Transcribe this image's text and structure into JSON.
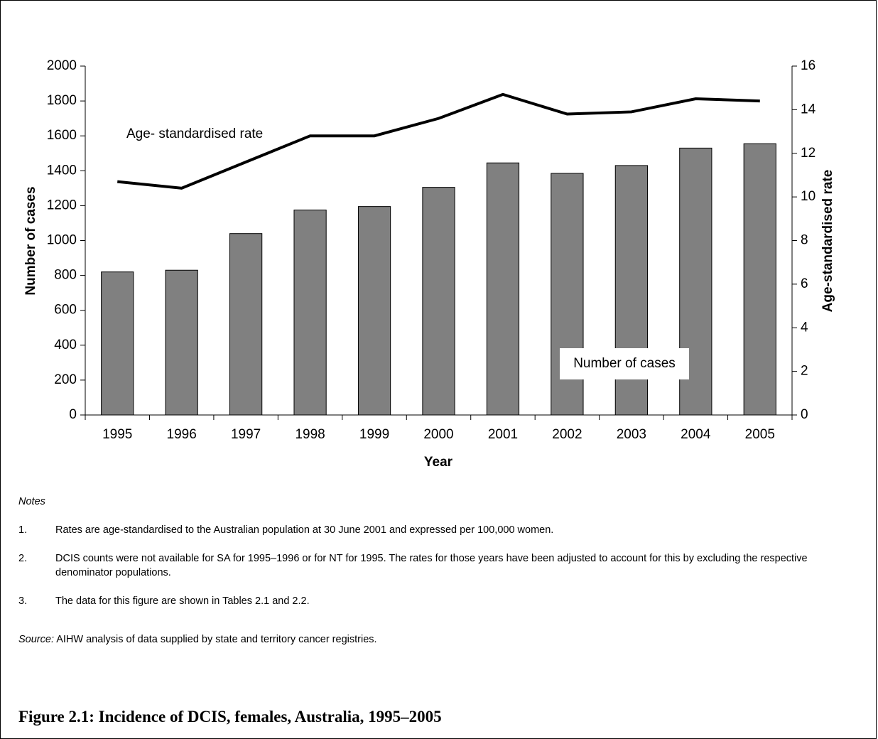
{
  "chart_data": {
    "type": "bar",
    "categories": [
      "1995",
      "1996",
      "1997",
      "1998",
      "1999",
      "2000",
      "2001",
      "2002",
      "2003",
      "2004",
      "2005"
    ],
    "series": [
      {
        "name": "Number of cases",
        "type": "bar",
        "color": "#808080",
        "values": [
          820,
          830,
          1040,
          1175,
          1195,
          1305,
          1445,
          1385,
          1430,
          1530,
          1555
        ]
      },
      {
        "name": "Age- standardised rate",
        "type": "line",
        "axis": "y2",
        "color": "#000000",
        "values": [
          10.7,
          10.4,
          11.6,
          12.8,
          12.8,
          13.6,
          14.7,
          13.8,
          13.9,
          14.5,
          14.4
        ]
      }
    ],
    "xlabel": "Year",
    "ylabel": "Number of cases",
    "y2label": "Age-standardised rate",
    "ylim": [
      0,
      2000
    ],
    "yticks": [
      0,
      200,
      400,
      600,
      800,
      1000,
      1200,
      1400,
      1600,
      1800,
      2000
    ],
    "y2lim": [
      0,
      16
    ],
    "y2ticks": [
      0,
      2,
      4,
      6,
      8,
      10,
      12,
      14,
      16
    ],
    "grid": false
  },
  "notes": {
    "title": "Notes",
    "items": [
      {
        "number": "1.",
        "text": "Rates are age-standardised to the Australian population at 30 June 2001 and expressed per 100,000 women."
      },
      {
        "number": "2.",
        "text": "DCIS counts were not available for SA for 1995–1996 or for NT for 1995. The rates for those years have been adjusted to account for this by excluding the respective denominator populations."
      },
      {
        "number": "3.",
        "text": "The data for this figure are shown in Tables 2.1 and 2.2."
      }
    ]
  },
  "source": {
    "label": "Source:",
    "text": "AIHW analysis of data supplied by state and territory cancer registries."
  },
  "figure_caption": "Figure 2.1: Incidence of DCIS, females, Australia, 1995–2005"
}
